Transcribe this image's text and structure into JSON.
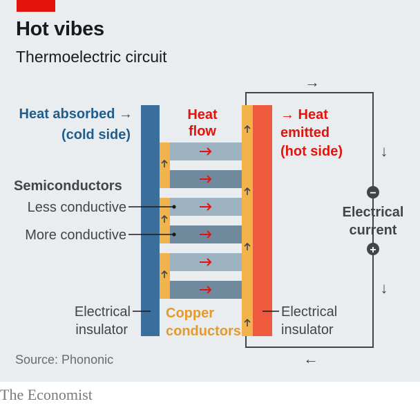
{
  "header": {
    "title": "Hot vibes",
    "subtitle": "Thermoelectric circuit"
  },
  "labels": {
    "heat_absorbed_1": "Heat absorbed →",
    "heat_absorbed_2": "(cold side)",
    "heat_flow_1": "Heat",
    "heat_flow_2": "flow",
    "heat_emitted_1": "→ Heat",
    "heat_emitted_2": "emitted",
    "heat_emitted_3": "(hot side)",
    "semiconductors": "Semiconductors",
    "less_conductive": "Less conductive",
    "more_conductive": "More conductive",
    "electrical_current_1": "Electrical",
    "electrical_current_2": "current",
    "insulator_left_1": "Electrical",
    "insulator_left_2": "insulator",
    "insulator_right_1": "Electrical",
    "insulator_right_2": "insulator",
    "copper_1": "Copper",
    "copper_2": "conductors",
    "arrow_right": "→",
    "arrow_left": "←",
    "arrow_down": "↓",
    "minus": "−",
    "plus": "+"
  },
  "footer": {
    "source": "Source: Phononic",
    "brand": "The Economist"
  },
  "colors": {
    "cold_side": "#3b6f9b",
    "hot_side": "#ee5a3e",
    "copper": "#f2b24c",
    "semiconductor_less": "#9db3c1",
    "semiconductor_more": "#6f8a9c",
    "heat_red": "#e3120b",
    "circuit": "#3f4549",
    "blue_text": "#1f5e8c",
    "orange_text": "#e59a2a"
  }
}
